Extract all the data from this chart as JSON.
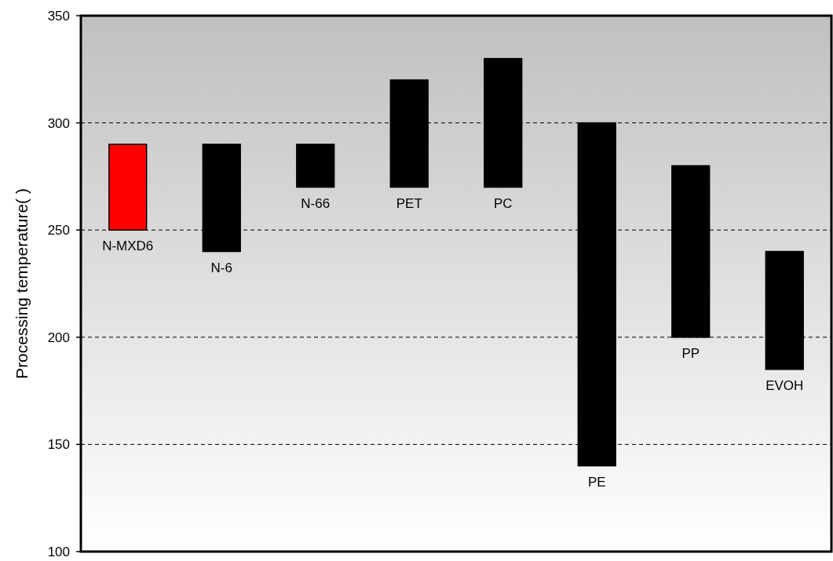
{
  "chart_data": {
    "type": "bar",
    "ylabel": "Processing temperature(  )",
    "categories": [
      "N-MXD6",
      "N-6",
      "N-66",
      "PET",
      "PC",
      "PE",
      "PP",
      "EVOH"
    ],
    "base": [
      250,
      240,
      270,
      270,
      270,
      140,
      200,
      185
    ],
    "values": [
      40,
      50,
      20,
      50,
      60,
      160,
      80,
      55
    ],
    "colors": [
      "#ff0000",
      "#000000",
      "#000000",
      "#000000",
      "#000000",
      "#000000",
      "#000000",
      "#000000"
    ],
    "ylim": [
      100,
      350
    ],
    "yticks": [
      100,
      150,
      200,
      250,
      300,
      350
    ],
    "grid": "y"
  }
}
